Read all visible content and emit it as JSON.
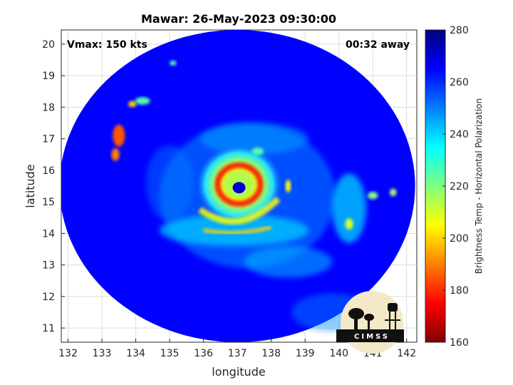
{
  "chart_data": {
    "type": "heatmap",
    "title": "Mawar: 26-May-2023 09:30:00",
    "xlabel": "longitude",
    "ylabel": "latitude",
    "xlim": [
      131.8,
      142.3
    ],
    "ylim": [
      10.55,
      20.45
    ],
    "x_ticks": [
      132,
      133,
      134,
      135,
      136,
      137,
      138,
      139,
      140,
      141,
      142
    ],
    "y_ticks": [
      11,
      12,
      13,
      14,
      15,
      16,
      17,
      18,
      19,
      20
    ],
    "grid": true,
    "annotations": {
      "left": "Vmax: 150 kts",
      "right": "00:32 away"
    },
    "colorbar": {
      "label": "Brightness Temp - Horizontal Polarization",
      "range": [
        160,
        280
      ],
      "ticks": [
        160,
        180,
        200,
        220,
        240,
        260,
        280
      ],
      "colormap": "jet",
      "position": "right"
    },
    "swath": {
      "center_lon": 137.0,
      "center_lat": 15.5,
      "radius_lon": 5.25,
      "radius_lat": 4.95
    },
    "features": {
      "eye": {
        "lon": 137.05,
        "lat": 15.45,
        "tb": 270
      },
      "eyewall_ring": {
        "center_lon": 137.05,
        "center_lat": 15.55,
        "tb": 178
      },
      "background_tb": 265,
      "rainbands_tb_range": [
        185,
        245
      ]
    },
    "logo_text": "CIMSS"
  }
}
